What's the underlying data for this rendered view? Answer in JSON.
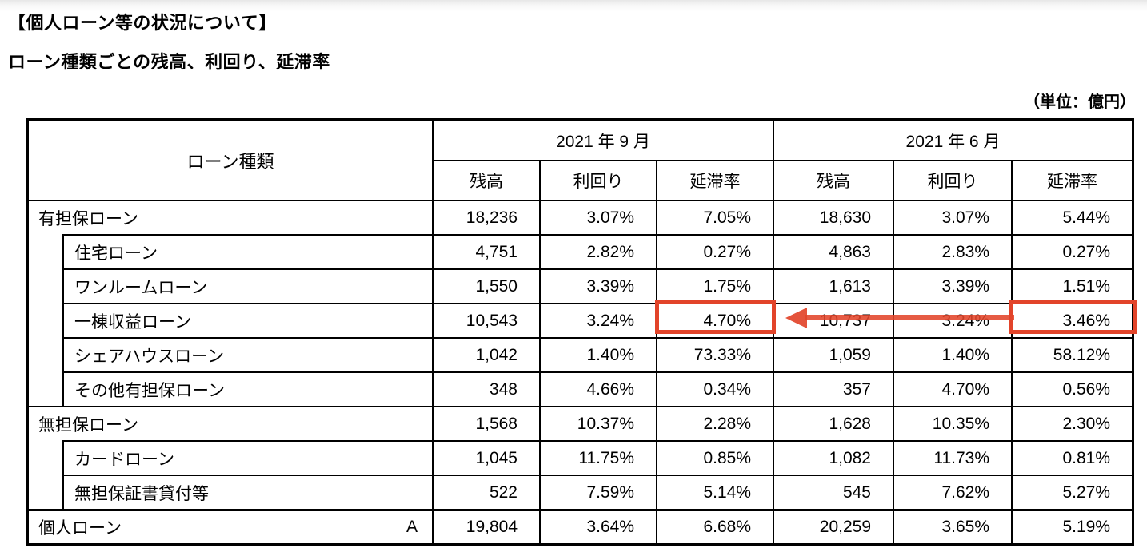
{
  "page": {
    "title": "【個人ローン等の状況について】",
    "subtitle": "ローン種類ごとの残高、利回り、延滞率",
    "unit_note": "（単位：億円）"
  },
  "table": {
    "loan_type_header": "ローン種類",
    "period_headers": [
      "2021 年 9 月",
      "2021 年 6 月"
    ],
    "metric_headers": [
      "残高",
      "利回り",
      "延滞率"
    ],
    "rows": [
      {
        "label": "有担保ローン",
        "level": 0,
        "sep": [
          "18,236",
          "3.07%",
          "7.05%"
        ],
        "jun": [
          "18,630",
          "3.07%",
          "5.44%"
        ]
      },
      {
        "label": "住宅ローン",
        "level": 1,
        "sep": [
          "4,751",
          "2.82%",
          "0.27%"
        ],
        "jun": [
          "4,863",
          "2.83%",
          "0.27%"
        ]
      },
      {
        "label": "ワンルームローン",
        "level": 1,
        "sep": [
          "1,550",
          "3.39%",
          "1.75%"
        ],
        "jun": [
          "1,613",
          "3.39%",
          "1.51%"
        ]
      },
      {
        "label": "一棟収益ローン",
        "level": 1,
        "sep": [
          "10,543",
          "3.24%",
          "4.70%"
        ],
        "jun": [
          "10,737",
          "3.24%",
          "3.46%"
        ],
        "highlight": true
      },
      {
        "label": "シェアハウスローン",
        "level": 1,
        "sep": [
          "1,042",
          "1.40%",
          "73.33%"
        ],
        "jun": [
          "1,059",
          "1.40%",
          "58.12%"
        ]
      },
      {
        "label": "その他有担保ローン",
        "level": 1,
        "sep": [
          "348",
          "4.66%",
          "0.34%"
        ],
        "jun": [
          "357",
          "4.70%",
          "0.56%"
        ]
      },
      {
        "label": "無担保ローン",
        "level": 0,
        "sep": [
          "1,568",
          "10.37%",
          "2.28%"
        ],
        "jun": [
          "1,628",
          "10.35%",
          "2.30%"
        ]
      },
      {
        "label": "カードローン",
        "level": 1,
        "sep": [
          "1,045",
          "11.75%",
          "0.85%"
        ],
        "jun": [
          "1,082",
          "11.73%",
          "0.81%"
        ]
      },
      {
        "label": "無担保証書貸付等",
        "level": 1,
        "sep": [
          "522",
          "7.59%",
          "5.14%"
        ],
        "jun": [
          "545",
          "7.62%",
          "5.27%"
        ]
      },
      {
        "label": "個人ローン",
        "level": 0,
        "marker": "A",
        "total": true,
        "sep": [
          "19,804",
          "3.64%",
          "6.68%"
        ],
        "jun": [
          "20,259",
          "3.65%",
          "5.19%"
        ]
      }
    ],
    "annotation": {
      "highlighted_row": "一棟収益ローン",
      "highlighted_values": [
        "4.70%",
        "3.46%"
      ],
      "color": "#e2442a"
    }
  }
}
